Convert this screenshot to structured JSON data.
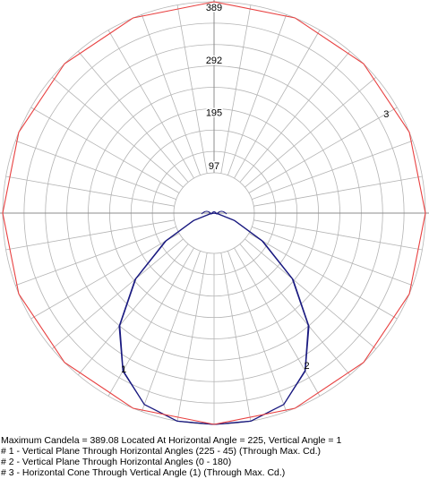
{
  "chart_data": {
    "type": "polar",
    "title": "",
    "max_value": 389,
    "ring_labels": [
      "97",
      "195",
      "292",
      "389"
    ],
    "ring_values": [
      97,
      195,
      292,
      389
    ],
    "grid": true,
    "colors": {
      "grid": "#b4b4b4",
      "axis": "#8c8c8c",
      "vertical_planes": "#1a1a80",
      "horizontal_cone": "#e84040"
    },
    "series": [
      {
        "label": "1",
        "description": "Vertical Plane Through Horizontal Angles (225 - 45) (Through Max. Cd.)",
        "kind": "vertical_plane",
        "angles_deg": [
          -90,
          -80,
          -70,
          -60,
          -50,
          -40,
          -30,
          -20,
          -10,
          0,
          10,
          20,
          30,
          40,
          50,
          60,
          70,
          80,
          90
        ],
        "values": [
          0,
          7,
          40,
          102,
          188,
          270,
          335,
          375,
          389,
          389,
          389,
          375,
          335,
          270,
          188,
          102,
          40,
          7,
          0
        ]
      },
      {
        "label": "2",
        "description": "Vertical Plane Through Horizontal Angles (0 - 180)",
        "kind": "vertical_plane",
        "angles_deg": [
          -90,
          -80,
          -70,
          -60,
          -50,
          -40,
          -30,
          -20,
          -10,
          0,
          10,
          20,
          30,
          40,
          50,
          60,
          70,
          80,
          90
        ],
        "values": [
          0,
          7,
          41,
          104,
          190,
          272,
          336,
          375,
          389,
          389,
          389,
          375,
          336,
          272,
          190,
          104,
          41,
          7,
          0
        ]
      },
      {
        "label": "3",
        "description": "Horizontal Cone Through Vertical Angle (1) (Through Max. Cd.)",
        "kind": "horizontal_cone",
        "angles_deg": [
          0,
          22.5,
          45,
          67.5,
          90,
          112.5,
          135,
          157.5,
          180,
          202.5,
          225,
          247.5,
          270,
          292.5,
          315,
          337.5
        ],
        "values": [
          389,
          389,
          389,
          389,
          389,
          389,
          389,
          389,
          389,
          389,
          389,
          389,
          389,
          389,
          389,
          389
        ]
      }
    ],
    "summary": {
      "line1": "Maximum Candela = 389.08   Located At Horizontal Angle = 225, Vertical Angle = 1",
      "line2": "# 1 - Vertical Plane Through Horizontal Angles (225 - 45) (Through Max. Cd.)",
      "line3": "# 2 - Vertical Plane Through Horizontal Angles (0 - 180)",
      "line4": "# 3 - Horizontal Cone Through Vertical Angle (1) (Through Max. Cd.)"
    }
  }
}
